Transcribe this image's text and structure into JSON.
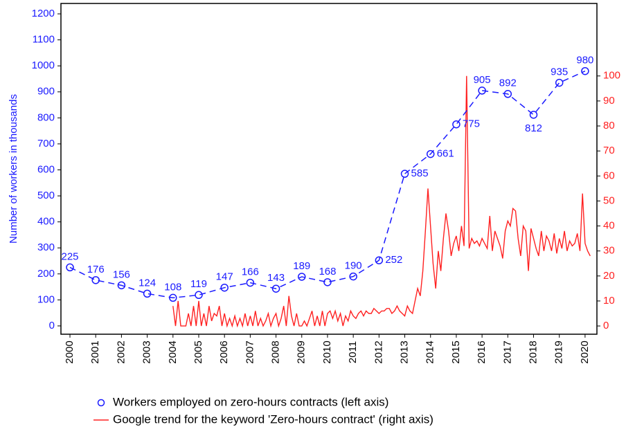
{
  "chart_data": {
    "type": "line",
    "ylabel": "Number of workers in thousands",
    "xlim": [
      1999.65,
      2020.46
    ],
    "xticks": [
      2000,
      2001,
      2002,
      2003,
      2004,
      2005,
      2006,
      2007,
      2008,
      2009,
      2010,
      2011,
      2012,
      2013,
      2014,
      2015,
      2016,
      2017,
      2018,
      2019,
      2020
    ],
    "ylim": [
      -32,
      1240
    ],
    "yticks": [
      0,
      100,
      200,
      300,
      400,
      500,
      600,
      700,
      800,
      900,
      1000,
      1100,
      1200
    ],
    "y2lim": [
      -3.3,
      129
    ],
    "y2ticks": [
      0,
      10,
      20,
      30,
      40,
      50,
      60,
      70,
      80,
      90,
      100
    ],
    "series": [
      {
        "name": "Workers employed on zero-hours contracts (left axis)",
        "color": "#1a1aff",
        "x": [
          2000,
          2001,
          2002,
          2003,
          2004,
          2005,
          2006,
          2007,
          2008,
          2009,
          2010,
          2011,
          2012,
          2013,
          2014,
          2015,
          2016,
          2017,
          2018,
          2019,
          2020
        ],
        "values": [
          225,
          176,
          156,
          124,
          108,
          119,
          147,
          166,
          143,
          189,
          168,
          190,
          252,
          585,
          661,
          775,
          905,
          892,
          812,
          935,
          980
        ]
      },
      {
        "name": "Google trend for the keyword 'Zero-hours contract' (right axis)",
        "color": "#ff2020",
        "axis": "y2",
        "x": [
          2004,
          2004.1,
          2004.2,
          2004.3,
          2004.4,
          2004.5,
          2004.6,
          2004.7,
          2004.8,
          2004.9,
          2005,
          2005.1,
          2005.2,
          2005.3,
          2005.4,
          2005.5,
          2005.6,
          2005.7,
          2005.8,
          2005.9,
          2006,
          2006.1,
          2006.2,
          2006.3,
          2006.4,
          2006.5,
          2006.6,
          2006.7,
          2006.8,
          2006.9,
          2007,
          2007.1,
          2007.2,
          2007.3,
          2007.4,
          2007.5,
          2007.6,
          2007.7,
          2007.8,
          2007.9,
          2008,
          2008.1,
          2008.2,
          2008.3,
          2008.4,
          2008.5,
          2008.6,
          2008.7,
          2008.8,
          2008.9,
          2009,
          2009.1,
          2009.2,
          2009.3,
          2009.4,
          2009.5,
          2009.6,
          2009.7,
          2009.8,
          2009.9,
          2010,
          2010.1,
          2010.2,
          2010.3,
          2010.4,
          2010.5,
          2010.6,
          2010.7,
          2010.8,
          2010.9,
          2011,
          2011.1,
          2011.2,
          2011.3,
          2011.4,
          2011.5,
          2011.6,
          2011.7,
          2011.8,
          2011.9,
          2012,
          2012.1,
          2012.2,
          2012.3,
          2012.4,
          2012.5,
          2012.6,
          2012.7,
          2012.8,
          2012.9,
          2013,
          2013.1,
          2013.2,
          2013.3,
          2013.4,
          2013.5,
          2013.6,
          2013.7,
          2013.8,
          2013.9,
          2014,
          2014.1,
          2014.2,
          2014.3,
          2014.4,
          2014.5,
          2014.6,
          2014.7,
          2014.8,
          2014.9,
          2015,
          2015.1,
          2015.2,
          2015.3,
          2015.4,
          2015.5,
          2015.6,
          2015.7,
          2015.8,
          2015.9,
          2016,
          2016.1,
          2016.2,
          2016.3,
          2016.4,
          2016.5,
          2016.6,
          2016.7,
          2016.8,
          2016.9,
          2017,
          2017.1,
          2017.2,
          2017.3,
          2017.4,
          2017.5,
          2017.6,
          2017.7,
          2017.8,
          2017.9,
          2018,
          2018.1,
          2018.2,
          2018.3,
          2018.4,
          2018.5,
          2018.6,
          2018.7,
          2018.8,
          2018.9,
          2019,
          2019.1,
          2019.2,
          2019.3,
          2019.4,
          2019.5,
          2019.6,
          2019.7,
          2019.8,
          2019.9,
          2020,
          2020.1,
          2020.2
        ],
        "values": [
          8,
          0,
          10,
          0,
          0,
          0,
          5,
          0,
          8,
          0,
          10,
          0,
          5,
          0,
          8,
          2,
          5,
          4,
          8,
          0,
          5,
          0,
          3,
          0,
          4,
          0,
          3,
          0,
          5,
          0,
          4,
          0,
          6,
          0,
          3,
          0,
          2,
          5,
          0,
          3,
          5,
          0,
          3,
          8,
          0,
          12,
          4,
          0,
          5,
          0,
          0,
          2,
          0,
          3,
          6,
          0,
          4,
          0,
          6,
          0,
          5,
          6,
          3,
          6,
          2,
          5,
          0,
          4,
          2,
          6,
          4,
          3,
          5,
          6,
          4,
          6,
          5,
          5,
          7,
          6,
          5,
          6,
          6,
          7,
          7,
          5,
          6,
          8,
          6,
          5,
          4,
          8,
          6,
          5,
          10,
          15,
          12,
          22,
          38,
          55,
          40,
          25,
          15,
          30,
          22,
          35,
          45,
          38,
          28,
          33,
          36,
          30,
          40,
          32,
          100,
          31,
          35,
          33,
          34,
          32,
          35,
          33,
          31,
          44,
          30,
          38,
          35,
          32,
          27,
          38,
          42,
          40,
          47,
          46,
          35,
          28,
          40,
          38,
          22,
          39,
          35,
          31,
          28,
          38,
          30,
          36,
          34,
          30,
          37,
          29,
          35,
          31,
          38,
          30,
          34,
          32,
          33,
          37,
          30,
          53,
          33,
          30,
          28
        ]
      }
    ]
  }
}
